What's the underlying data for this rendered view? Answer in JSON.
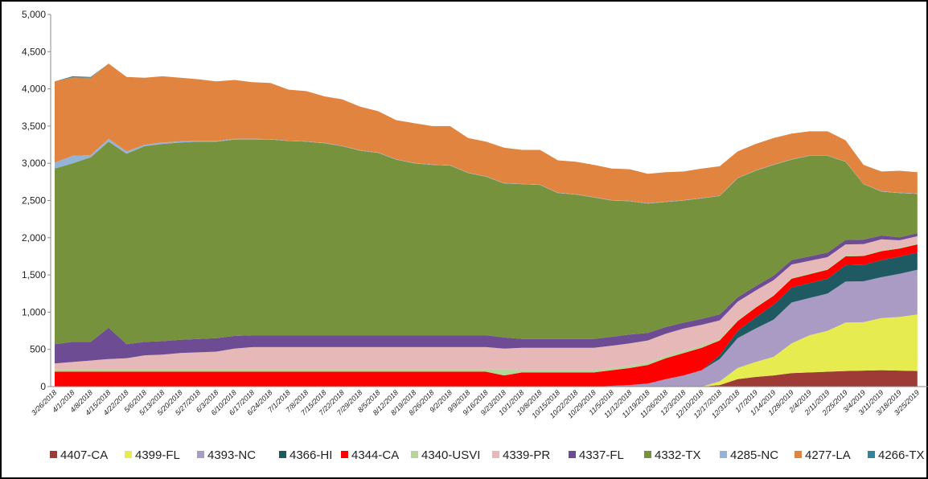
{
  "chart_data": {
    "type": "stacked_area",
    "categories": [
      "3/26/2018",
      "4/1/2018",
      "4/8/2018",
      "4/15/2018",
      "4/22/2018",
      "5/6/2018",
      "5/13/2018",
      "5/20/2018",
      "5/27/2018",
      "6/3/2018",
      "6/10/2018",
      "6/17/2018",
      "6/24/2018",
      "7/1/2018",
      "7/8/2018",
      "7/15/2018",
      "7/22/2018",
      "7/29/2018",
      "8/5/2018",
      "8/12/2018",
      "8/19/2018",
      "8/26/2018",
      "9/2/2018",
      "9/9/2018",
      "9/16/2018",
      "9/23/2018",
      "10/1/2018",
      "10/8/2018",
      "10/15/2018",
      "10/22/2018",
      "10/29/2018",
      "11/5/2018",
      "11/12/2018",
      "11/19/2018",
      "11/26/2018",
      "12/3/2018",
      "12/10/2018",
      "12/17/2018",
      "12/31/2018",
      "1/7/2019",
      "1/14/2019",
      "1/28/2019",
      "2/4/2019",
      "2/11/2019",
      "2/25/2019",
      "3/4/2019",
      "3/11/2019",
      "3/18/2019",
      "3/25/2019"
    ],
    "series": [
      {
        "name": "4407-CA",
        "color": "#9e3b36",
        "values": [
          0,
          0,
          0,
          0,
          0,
          0,
          0,
          0,
          0,
          0,
          0,
          0,
          0,
          0,
          0,
          0,
          0,
          0,
          0,
          0,
          0,
          0,
          0,
          0,
          0,
          0,
          0,
          0,
          0,
          0,
          0,
          0,
          0,
          0,
          0,
          0,
          0,
          20,
          100,
          130,
          150,
          180,
          190,
          200,
          210,
          215,
          220,
          215,
          210
        ]
      },
      {
        "name": "4399-FL",
        "color": "#e6ec50",
        "values": [
          0,
          0,
          0,
          0,
          0,
          0,
          0,
          0,
          0,
          0,
          0,
          0,
          0,
          0,
          0,
          0,
          0,
          0,
          0,
          0,
          0,
          0,
          0,
          0,
          0,
          0,
          0,
          0,
          0,
          0,
          0,
          0,
          0,
          0,
          0,
          0,
          0,
          50,
          150,
          200,
          250,
          400,
          500,
          550,
          650,
          650,
          700,
          720,
          760
        ]
      },
      {
        "name": "4393-NC",
        "color": "#a99bc4",
        "values": [
          0,
          0,
          0,
          0,
          0,
          0,
          0,
          0,
          0,
          0,
          0,
          0,
          0,
          0,
          0,
          0,
          0,
          0,
          0,
          0,
          0,
          0,
          0,
          0,
          0,
          0,
          0,
          0,
          0,
          0,
          0,
          10,
          20,
          40,
          100,
          150,
          220,
          300,
          400,
          450,
          500,
          550,
          500,
          500,
          550,
          550,
          550,
          580,
          600
        ]
      },
      {
        "name": "4366-HI",
        "color": "#1f5a63",
        "values": [
          0,
          0,
          0,
          0,
          0,
          0,
          0,
          0,
          0,
          0,
          0,
          0,
          0,
          0,
          0,
          0,
          0,
          0,
          0,
          0,
          0,
          0,
          0,
          0,
          0,
          0,
          0,
          0,
          0,
          0,
          0,
          0,
          0,
          0,
          0,
          0,
          0,
          50,
          100,
          150,
          200,
          200,
          200,
          200,
          220,
          220,
          230,
          230,
          230
        ]
      },
      {
        "name": "4344-CA",
        "color": "#ff0000",
        "values": [
          200,
          200,
          200,
          200,
          200,
          200,
          200,
          200,
          200,
          200,
          200,
          200,
          200,
          200,
          200,
          200,
          200,
          200,
          200,
          200,
          200,
          200,
          200,
          200,
          200,
          150,
          190,
          190,
          190,
          190,
          190,
          210,
          230,
          250,
          280,
          300,
          300,
          200,
          130,
          130,
          120,
          120,
          120,
          120,
          120,
          120,
          120,
          110,
          110
        ]
      },
      {
        "name": "4340-USVI",
        "color": "#b5d69a",
        "values": [
          30,
          30,
          30,
          30,
          30,
          30,
          30,
          30,
          30,
          30,
          30,
          30,
          30,
          30,
          30,
          30,
          30,
          30,
          30,
          30,
          30,
          30,
          30,
          30,
          30,
          80,
          30,
          30,
          30,
          30,
          30,
          30,
          30,
          30,
          30,
          30,
          30,
          20,
          10,
          10,
          10,
          10,
          10,
          10,
          10,
          10,
          10,
          10,
          10
        ]
      },
      {
        "name": "4339-PR",
        "color": "#e6b8b7",
        "values": [
          80,
          100,
          120,
          140,
          150,
          190,
          200,
          220,
          230,
          240,
          280,
          300,
          300,
          300,
          300,
          300,
          300,
          300,
          300,
          300,
          300,
          300,
          300,
          300,
          300,
          280,
          300,
          300,
          300,
          300,
          300,
          300,
          300,
          300,
          300,
          300,
          280,
          250,
          250,
          220,
          200,
          180,
          170,
          160,
          150,
          150,
          150,
          100,
          100
        ]
      },
      {
        "name": "4337-FL",
        "color": "#6d4c94",
        "values": [
          260,
          270,
          250,
          420,
          190,
          180,
          180,
          180,
          180,
          180,
          170,
          160,
          160,
          160,
          160,
          160,
          160,
          160,
          160,
          160,
          160,
          160,
          160,
          160,
          160,
          150,
          120,
          120,
          120,
          120,
          120,
          120,
          120,
          100,
          90,
          80,
          80,
          80,
          60,
          60,
          60,
          60,
          60,
          60,
          60,
          60,
          50,
          40,
          40
        ]
      },
      {
        "name": "4332-TX",
        "color": "#76923c",
        "values": [
          2360,
          2400,
          2480,
          2500,
          2560,
          2630,
          2650,
          2650,
          2650,
          2640,
          2640,
          2630,
          2630,
          2610,
          2600,
          2580,
          2540,
          2480,
          2450,
          2360,
          2310,
          2290,
          2280,
          2180,
          2130,
          2070,
          2080,
          2070,
          1960,
          1940,
          1900,
          1830,
          1790,
          1740,
          1680,
          1640,
          1620,
          1590,
          1600,
          1550,
          1490,
          1350,
          1350,
          1300,
          1050,
          745,
          590,
          595,
          530
        ]
      },
      {
        "name": "4285-NC",
        "color": "#95b3d7",
        "values": [
          80,
          100,
          30,
          40,
          30,
          20,
          20,
          15,
          15,
          10,
          10,
          10,
          5,
          5,
          5,
          5,
          5,
          5,
          5,
          5,
          5,
          5,
          5,
          5,
          5,
          5,
          5,
          5,
          5,
          5,
          5,
          5,
          5,
          5,
          5,
          5,
          5,
          5,
          5,
          5,
          5,
          5,
          5,
          5,
          5,
          5,
          5,
          5,
          5
        ]
      },
      {
        "name": "4277-LA",
        "color": "#e0843f",
        "values": [
          1090,
          1055,
          1040,
          1010,
          1000,
          900,
          890,
          855,
          825,
          800,
          790,
          760,
          755,
          685,
          675,
          625,
          625,
          585,
          555,
          525,
          535,
          515,
          525,
          465,
          465,
          475,
          455,
          465,
          435,
          435,
          435,
          425,
          425,
          395,
          395,
          385,
          395,
          395,
          355,
          355,
          355,
          345,
          325,
          325,
          285,
          255,
          265,
          295,
          285
        ]
      },
      {
        "name": "4266-TX",
        "color": "#31849b",
        "values": [
          0,
          15,
          10,
          0,
          0,
          0,
          0,
          0,
          0,
          0,
          0,
          0,
          0,
          0,
          0,
          0,
          0,
          0,
          0,
          0,
          0,
          0,
          0,
          0,
          0,
          0,
          0,
          0,
          0,
          0,
          0,
          0,
          0,
          0,
          0,
          0,
          0,
          0,
          0,
          0,
          0,
          0,
          0,
          0,
          0,
          0,
          0,
          0,
          0
        ]
      }
    ],
    "ylim": [
      0,
      5000
    ],
    "yticks": [
      0,
      500,
      {
        "value": 1000,
        "label": "1,000"
      },
      {
        "value": 1500,
        "label": "1,500"
      },
      {
        "value": 2000,
        "label": "2,000"
      },
      {
        "value": 2500,
        "label": "2,500"
      },
      {
        "value": 3000,
        "label": "3,000"
      },
      {
        "value": 3500,
        "label": "3,500"
      },
      {
        "value": 4000,
        "label": "4,000"
      },
      {
        "value": 4500,
        "label": "4,500"
      },
      {
        "value": 5000,
        "label": "5,000"
      }
    ],
    "grid": false,
    "legend": "bottom"
  }
}
